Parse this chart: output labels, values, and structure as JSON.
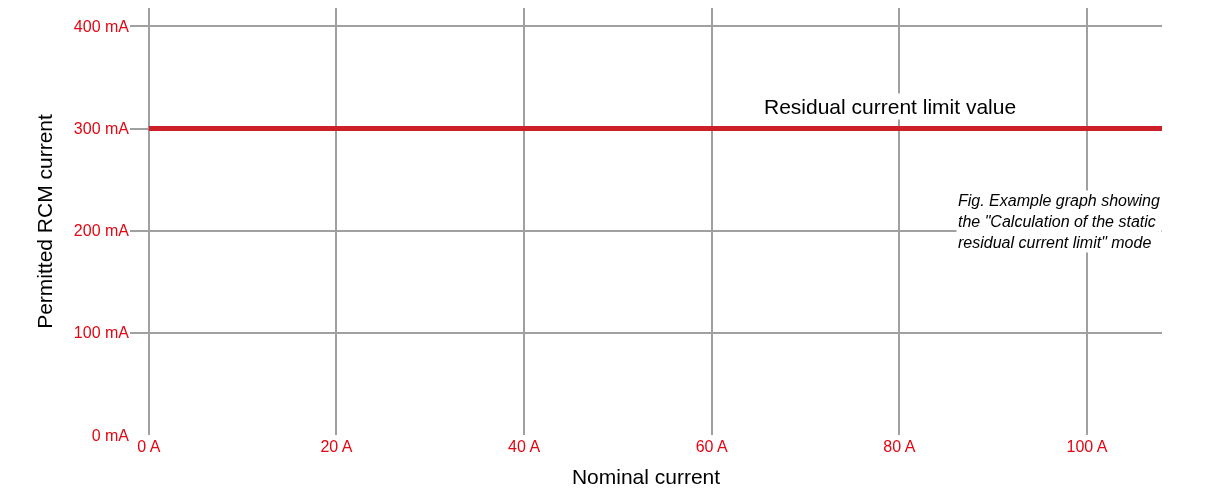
{
  "chart_data": {
    "type": "line",
    "xlabel": "Nominal current",
    "ylabel": "Permitted RCM current",
    "x": [
      0,
      108
    ],
    "series": [
      {
        "color": "#cc1f27",
        "values": [
          300,
          300
        ]
      }
    ],
    "xlim": [
      -2,
      108
    ],
    "ylim": [
      0,
      418
    ],
    "xticks": [
      {
        "value": 0,
        "label": "0 A"
      },
      {
        "value": 20,
        "label": "20 A"
      },
      {
        "value": 40,
        "label": "40 A"
      },
      {
        "value": 60,
        "label": "60 A"
      },
      {
        "value": 80,
        "label": "80 A"
      },
      {
        "value": 100,
        "label": "100 A"
      }
    ],
    "yticks": [
      {
        "value": 0,
        "label": "0 mA"
      },
      {
        "value": 100,
        "label": "100 mA"
      },
      {
        "value": 200,
        "label": "200 mA"
      },
      {
        "value": 300,
        "label": "300 mA"
      },
      {
        "value": 400,
        "label": "400 mA"
      }
    ],
    "grid": true,
    "marker": "none",
    "line_style": "solid",
    "annotations": [
      {
        "text": "Residual current limit value",
        "x": 79,
        "y": 300
      },
      "Fig. Example graph showing\nthe \"Calculation of the static\nresidual current limit\" mode"
    ]
  }
}
